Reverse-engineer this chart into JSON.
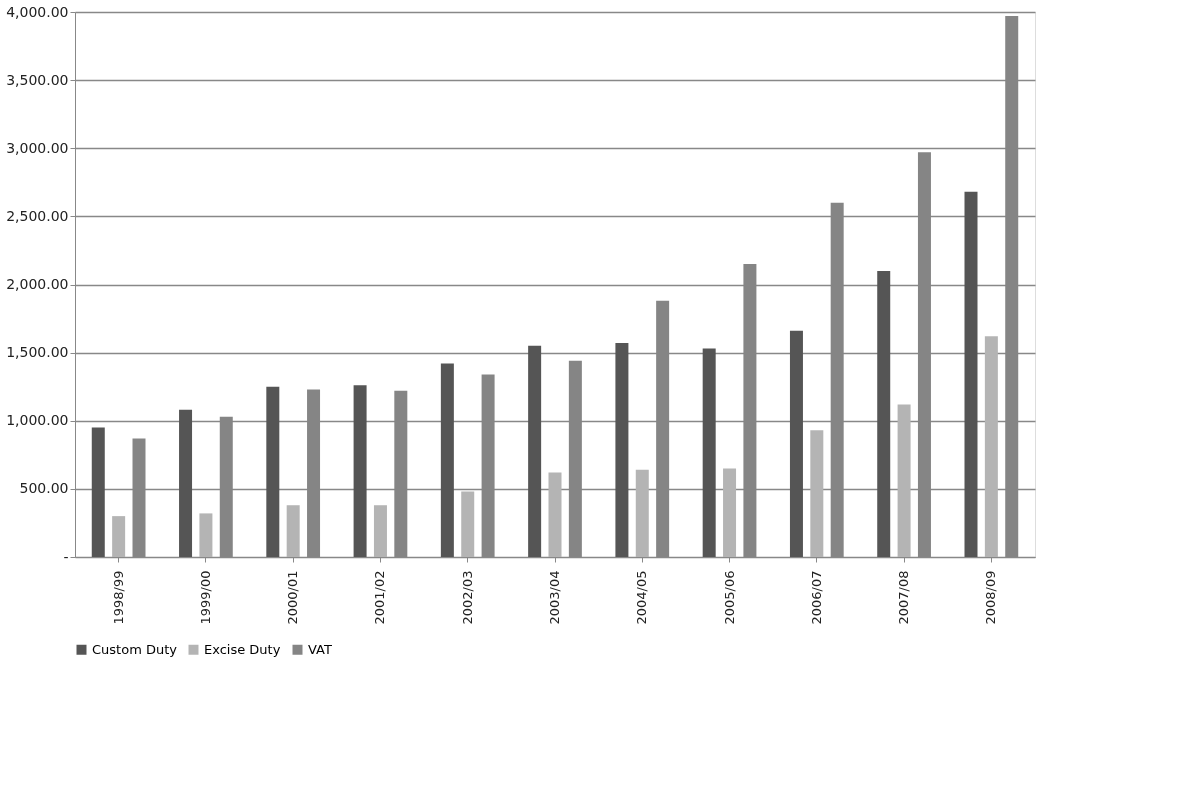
{
  "chart_data": {
    "type": "bar",
    "categories": [
      "1998/99",
      "1999/00",
      "2000/01",
      "2001/02",
      "2002/03",
      "2003/04",
      "2004/05",
      "2005/06",
      "2006/07",
      "2007/08",
      "2008/09"
    ],
    "series": [
      {
        "name": "Custom Duty",
        "color": "#555555",
        "values": [
          950,
          1080,
          1250,
          1260,
          1420,
          1550,
          1570,
          1530,
          1660,
          2100,
          2680
        ]
      },
      {
        "name": "Excise Duty",
        "color": "#b4b4b4",
        "values": [
          300,
          320,
          380,
          380,
          480,
          620,
          640,
          650,
          930,
          1120,
          1620
        ]
      },
      {
        "name": "VAT",
        "color": "#858585",
        "values": [
          870,
          1030,
          1230,
          1220,
          1340,
          1440,
          1880,
          2150,
          2600,
          2970,
          3970
        ]
      }
    ],
    "ylim": [
      0,
      4000
    ],
    "yticks": [
      {
        "value": 0,
        "label": "-"
      },
      {
        "value": 500,
        "label": "500.00"
      },
      {
        "value": 1000,
        "label": "1,000.00"
      },
      {
        "value": 1500,
        "label": "1,500.00"
      },
      {
        "value": 2000,
        "label": "2,000.00"
      },
      {
        "value": 2500,
        "label": "2,500.00"
      },
      {
        "value": 3000,
        "label": "3,000.00"
      },
      {
        "value": 3500,
        "label": "3,500.00"
      },
      {
        "value": 4000,
        "label": "4,000.00"
      }
    ],
    "grid": "y",
    "legend": "bottom"
  }
}
